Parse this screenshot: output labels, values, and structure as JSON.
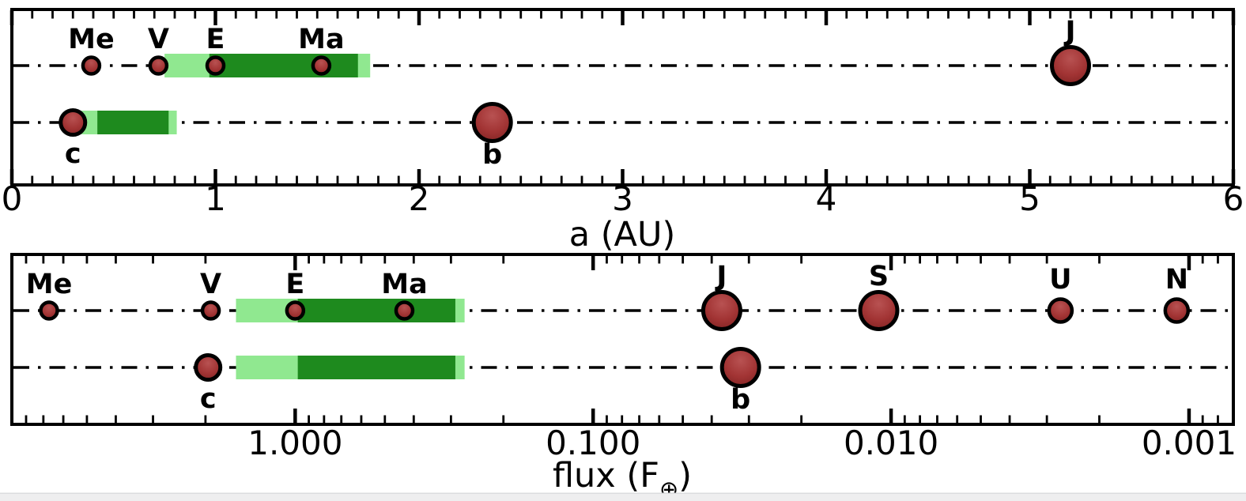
{
  "figure": {
    "background": "#ffffff",
    "bottom_strip": {
      "color": "#eeeeef",
      "border_color": "#dbdcde"
    }
  },
  "colors": {
    "axis": "#000000",
    "guide_line": "#000000",
    "hz_optimistic": "#90e890",
    "hz_conservative": "#1e8a1e",
    "planet_fill_light": "#b85252",
    "planet_fill": "#a23434",
    "planet_fill_dark": "#7e2222",
    "planet_stroke": "#000000"
  },
  "chart_data": [
    {
      "id": "semimajor-axis-panel",
      "type": "scatter",
      "xlabel": "a (AU)",
      "xscale": "linear",
      "xlim": [
        0,
        6
      ],
      "xticks": [
        0,
        1,
        2,
        3,
        4,
        5,
        6
      ],
      "xtick_labels": [
        "0",
        "1",
        "2",
        "3",
        "4",
        "5",
        "6"
      ],
      "minor_tick_step": 0.1,
      "grid": "off",
      "row_guide_style": "dash-dot",
      "rows": [
        {
          "name": "solar-system",
          "habitable_zone": {
            "optimistic": [
              0.75,
              1.76
            ],
            "conservative": [
              0.97,
              1.7
            ]
          },
          "planets": [
            {
              "label": "Me",
              "x": 0.39,
              "size": "small",
              "label_pos": "above"
            },
            {
              "label": "V",
              "x": 0.72,
              "size": "small",
              "label_pos": "above"
            },
            {
              "label": "E",
              "x": 1.0,
              "size": "small",
              "label_pos": "above"
            },
            {
              "label": "Ma",
              "x": 1.52,
              "size": "small",
              "label_pos": "above"
            },
            {
              "label": "J",
              "x": 5.2,
              "size": "large",
              "label_pos": "above"
            }
          ]
        },
        {
          "name": "exoplanet-system",
          "habitable_zone": {
            "optimistic": [
              0.34,
              0.81
            ],
            "conservative": [
              0.42,
              0.77
            ]
          },
          "planets": [
            {
              "label": "c",
              "x": 0.3,
              "size": "medium",
              "label_pos": "below"
            },
            {
              "label": "b",
              "x": 2.36,
              "size": "large",
              "label_pos": "below"
            }
          ]
        }
      ]
    },
    {
      "id": "flux-panel",
      "type": "scatter",
      "xlabel": "flux (F⊕)",
      "xscale": "log-reversed",
      "xlim": [
        8.93,
        0.00071
      ],
      "xticks": [
        1.0,
        0.1,
        0.01,
        0.001
      ],
      "xtick_labels": [
        "1.000",
        "0.100",
        "0.010",
        "0.001"
      ],
      "grid": "off",
      "row_guide_style": "dash-dot",
      "rows": [
        {
          "name": "solar-system",
          "habitable_zone": {
            "optimistic": [
              1.58,
              0.27
            ],
            "conservative": [
              0.98,
              0.29
            ]
          },
          "planets": [
            {
              "label": "Me",
              "x": 6.7,
              "size": "small",
              "label_pos": "above"
            },
            {
              "label": "V",
              "x": 1.92,
              "size": "small",
              "label_pos": "above"
            },
            {
              "label": "E",
              "x": 1.0,
              "size": "small",
              "label_pos": "above"
            },
            {
              "label": "Ma",
              "x": 0.43,
              "size": "small",
              "label_pos": "above"
            },
            {
              "label": "J",
              "x": 0.037,
              "size": "large",
              "label_pos": "above"
            },
            {
              "label": "S",
              "x": 0.011,
              "size": "large",
              "label_pos": "above"
            },
            {
              "label": "U",
              "x": 0.0027,
              "size": "mid",
              "label_pos": "above"
            },
            {
              "label": "N",
              "x": 0.0011,
              "size": "mid",
              "label_pos": "above"
            }
          ]
        },
        {
          "name": "exoplanet-system",
          "habitable_zone": {
            "optimistic": [
              1.58,
              0.27
            ],
            "conservative": [
              0.98,
              0.29
            ]
          },
          "planets": [
            {
              "label": "c",
              "x": 1.96,
              "size": "medium",
              "label_pos": "below"
            },
            {
              "label": "b",
              "x": 0.032,
              "size": "large",
              "label_pos": "below"
            }
          ]
        }
      ]
    }
  ]
}
